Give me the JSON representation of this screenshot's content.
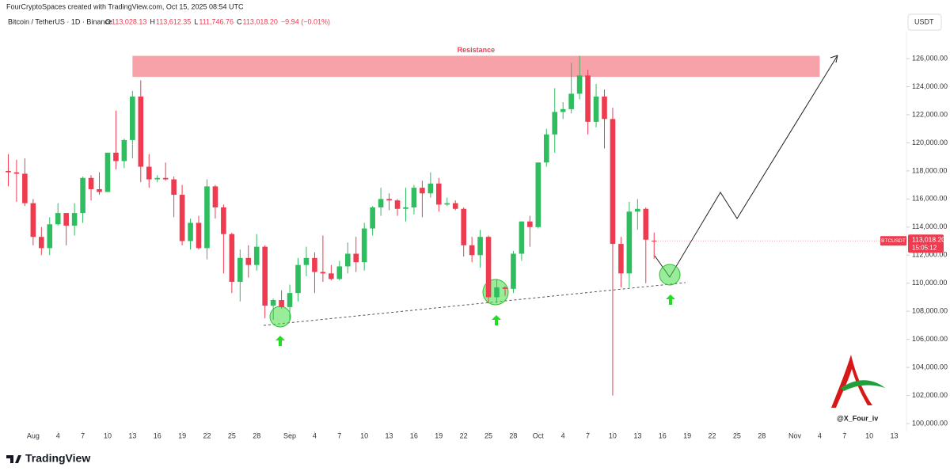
{
  "header": {
    "credit": "FourCryptoSpaces created with TradingView.com, Oct 15, 2025 08:54 UTC",
    "symbol": "Bitcoin / TetherUS · 1D · Binance",
    "ohlc": [
      {
        "label": "O",
        "value": "113,028.13"
      },
      {
        "label": "H",
        "value": "113,612.35"
      },
      {
        "label": "L",
        "value": "111,746.76"
      },
      {
        "label": "C",
        "value": "113,018.20"
      }
    ],
    "change": "−9.94 (−0.01%)",
    "currency": "USDT"
  },
  "footer": {
    "brand": "TradingView",
    "watermark": "@X_Four_iv"
  },
  "chart_data": {
    "type": "candlestick",
    "up_color": "#2ebd5f",
    "down_color": "#ef3b4f",
    "grid": false,
    "x": [
      "2025-07-29",
      "2025-07-30",
      "2025-07-31",
      "2025-08-01",
      "2025-08-02",
      "2025-08-03",
      "2025-08-04",
      "2025-08-05",
      "2025-08-06",
      "2025-08-07",
      "2025-08-08",
      "2025-08-09",
      "2025-08-10",
      "2025-08-11",
      "2025-08-12",
      "2025-08-13",
      "2025-08-14",
      "2025-08-15",
      "2025-08-16",
      "2025-08-17",
      "2025-08-18",
      "2025-08-19",
      "2025-08-20",
      "2025-08-21",
      "2025-08-22",
      "2025-08-23",
      "2025-08-24",
      "2025-08-25",
      "2025-08-26",
      "2025-08-27",
      "2025-08-28",
      "2025-08-29",
      "2025-08-30",
      "2025-08-31",
      "2025-09-01",
      "2025-09-02",
      "2025-09-03",
      "2025-09-04",
      "2025-09-05",
      "2025-09-06",
      "2025-09-07",
      "2025-09-08",
      "2025-09-09",
      "2025-09-10",
      "2025-09-11",
      "2025-09-12",
      "2025-09-13",
      "2025-09-14",
      "2025-09-15",
      "2025-09-16",
      "2025-09-17",
      "2025-09-18",
      "2025-09-19",
      "2025-09-20",
      "2025-09-21",
      "2025-09-22",
      "2025-09-23",
      "2025-09-24",
      "2025-09-25",
      "2025-09-26",
      "2025-09-27",
      "2025-09-28",
      "2025-09-29",
      "2025-09-30",
      "2025-10-01",
      "2025-10-02",
      "2025-10-03",
      "2025-10-04",
      "2025-10-05",
      "2025-10-06",
      "2025-10-07",
      "2025-10-08",
      "2025-10-09",
      "2025-10-10",
      "2025-10-11",
      "2025-10-12",
      "2025-10-13",
      "2025-10-14",
      "2025-10-15"
    ],
    "open": [
      118000,
      117900,
      117800,
      115700,
      113300,
      112500,
      114200,
      115000,
      114100,
      115000,
      117500,
      116700,
      116500,
      119300,
      118700,
      120200,
      123300,
      118300,
      117400,
      117500,
      117400,
      116300,
      113000,
      114300,
      112500,
      116900,
      115400,
      113500,
      110100,
      111800,
      111300,
      112600,
      108400,
      108800,
      108300,
      109300,
      111300,
      111800,
      110800,
      110700,
      110300,
      111200,
      112100,
      111500,
      113900,
      115400,
      116000,
      115900,
      115300,
      115400,
      116800,
      116400,
      117100,
      115600,
      115700,
      115300,
      112700,
      112000,
      113300,
      109000,
      109700,
      109600,
      112100,
      114400,
      114000,
      118600,
      120600,
      122200,
      122400,
      123500,
      124800,
      121500,
      123300,
      121700,
      112800,
      110700,
      115100,
      115300,
      113028.13
    ],
    "high": [
      119200,
      118800,
      118900,
      116000,
      114000,
      114700,
      115700,
      115000,
      115700,
      117600,
      117700,
      117900,
      119300,
      122300,
      120300,
      123700,
      124450,
      119200,
      117700,
      118600,
      117600,
      117000,
      114600,
      114800,
      117400,
      117000,
      115600,
      113600,
      112400,
      112700,
      113500,
      112700,
      108900,
      109500,
      109900,
      111800,
      112600,
      112200,
      113400,
      111300,
      111600,
      112900,
      113300,
      114300,
      115500,
      116800,
      116400,
      116000,
      116800,
      117000,
      117300,
      117900,
      117500,
      116100,
      115900,
      115400,
      113300,
      113800,
      113400,
      110300,
      109800,
      112300,
      114400,
      114800,
      118600,
      121000,
      123900,
      122900,
      125700,
      126200,
      125200,
      124200,
      123800,
      122500,
      113300,
      115800,
      116000,
      115400,
      113612.35
    ],
    "low": [
      116900,
      115800,
      115500,
      112700,
      112000,
      112000,
      114100,
      112700,
      113400,
      114300,
      115900,
      116300,
      116500,
      118100,
      118200,
      118900,
      117200,
      116800,
      117200,
      117300,
      114700,
      112700,
      112400,
      112400,
      111700,
      114600,
      110700,
      109300,
      108700,
      110400,
      110900,
      107500,
      107400,
      108200,
      107300,
      108700,
      110500,
      109300,
      110100,
      110200,
      110200,
      110700,
      110800,
      110900,
      113400,
      114800,
      115200,
      114800,
      114400,
      114900,
      114700,
      116100,
      115100,
      115500,
      115200,
      111900,
      111500,
      111100,
      108600,
      108600,
      109100,
      109300,
      111600,
      112600,
      113900,
      118300,
      119300,
      121700,
      122100,
      123100,
      120600,
      121100,
      119600,
      102000,
      109700,
      109700,
      113800,
      110000,
      111746.76
    ],
    "close": [
      117900,
      117800,
      115700,
      113300,
      112500,
      114200,
      115000,
      114100,
      115000,
      117500,
      116700,
      116500,
      119300,
      118700,
      120200,
      123300,
      118300,
      117400,
      117500,
      117400,
      116300,
      113000,
      114300,
      112500,
      116900,
      115400,
      113500,
      110100,
      111800,
      111300,
      112600,
      108400,
      108800,
      108300,
      109300,
      111300,
      111800,
      110800,
      110700,
      110300,
      111200,
      112100,
      111500,
      113900,
      115400,
      116000,
      115900,
      115300,
      115400,
      116800,
      116400,
      117100,
      115600,
      115700,
      115300,
      112700,
      112000,
      113300,
      109000,
      109700,
      109600,
      112100,
      114400,
      114000,
      118600,
      120600,
      122200,
      122400,
      123500,
      124800,
      121500,
      123300,
      121700,
      112800,
      110700,
      115100,
      115300,
      113100,
      113018.2
    ],
    "xlim": [
      "2025-07-28",
      "2025-11-14"
    ],
    "xticks": [
      {
        "value": "2025-08-01",
        "label": "Aug"
      },
      {
        "value": "2025-08-04",
        "label": "4"
      },
      {
        "value": "2025-08-07",
        "label": "7"
      },
      {
        "value": "2025-08-10",
        "label": "10"
      },
      {
        "value": "2025-08-13",
        "label": "13"
      },
      {
        "value": "2025-08-16",
        "label": "16"
      },
      {
        "value": "2025-08-19",
        "label": "19"
      },
      {
        "value": "2025-08-22",
        "label": "22"
      },
      {
        "value": "2025-08-25",
        "label": "25"
      },
      {
        "value": "2025-08-28",
        "label": "28"
      },
      {
        "value": "2025-09-01",
        "label": "Sep"
      },
      {
        "value": "2025-09-04",
        "label": "4"
      },
      {
        "value": "2025-09-07",
        "label": "7"
      },
      {
        "value": "2025-09-10",
        "label": "10"
      },
      {
        "value": "2025-09-13",
        "label": "13"
      },
      {
        "value": "2025-09-16",
        "label": "16"
      },
      {
        "value": "2025-09-19",
        "label": "19"
      },
      {
        "value": "2025-09-22",
        "label": "22"
      },
      {
        "value": "2025-09-25",
        "label": "25"
      },
      {
        "value": "2025-09-28",
        "label": "28"
      },
      {
        "value": "2025-10-01",
        "label": "Oct"
      },
      {
        "value": "2025-10-04",
        "label": "4"
      },
      {
        "value": "2025-10-07",
        "label": "7"
      },
      {
        "value": "2025-10-10",
        "label": "10"
      },
      {
        "value": "2025-10-13",
        "label": "13"
      },
      {
        "value": "2025-10-16",
        "label": "16"
      },
      {
        "value": "2025-10-19",
        "label": "19"
      },
      {
        "value": "2025-10-22",
        "label": "22"
      },
      {
        "value": "2025-10-25",
        "label": "25"
      },
      {
        "value": "2025-10-28",
        "label": "28"
      },
      {
        "value": "2025-11-01",
        "label": "Nov"
      },
      {
        "value": "2025-11-04",
        "label": "4"
      },
      {
        "value": "2025-11-07",
        "label": "7"
      },
      {
        "value": "2025-11-10",
        "label": "10"
      },
      {
        "value": "2025-11-13",
        "label": "13"
      }
    ],
    "ylim": [
      99500,
      128000
    ],
    "yticks": [
      {
        "value": 100000,
        "label": "100,000.00"
      },
      {
        "value": 102000,
        "label": "102,000.00"
      },
      {
        "value": 104000,
        "label": "104,000.00"
      },
      {
        "value": 106000,
        "label": "106,000.00"
      },
      {
        "value": 108000,
        "label": "108,000.00"
      },
      {
        "value": 110000,
        "label": "110,000.00"
      },
      {
        "value": 112000,
        "label": "112,000.00"
      },
      {
        "value": 114000,
        "label": "114,000.00"
      },
      {
        "value": 116000,
        "label": "116,000.00"
      },
      {
        "value": 118000,
        "label": "118,000.00"
      },
      {
        "value": 120000,
        "label": "120,000.00"
      },
      {
        "value": 122000,
        "label": "122,000.00"
      },
      {
        "value": 124000,
        "label": "124,000.00"
      },
      {
        "value": 126000,
        "label": "126,000.00"
      }
    ],
    "resistance": {
      "label": "Resistance",
      "x": [
        "2025-08-13",
        "2025-11-04"
      ],
      "y": [
        124700,
        126200
      ],
      "color": "#f7a1a8"
    },
    "last_price": {
      "name": "BTCUSDT",
      "value": 113018.2,
      "label": "113,018.20",
      "countdown": "15:05:12",
      "color": "#ef3b4f"
    }
  }
}
